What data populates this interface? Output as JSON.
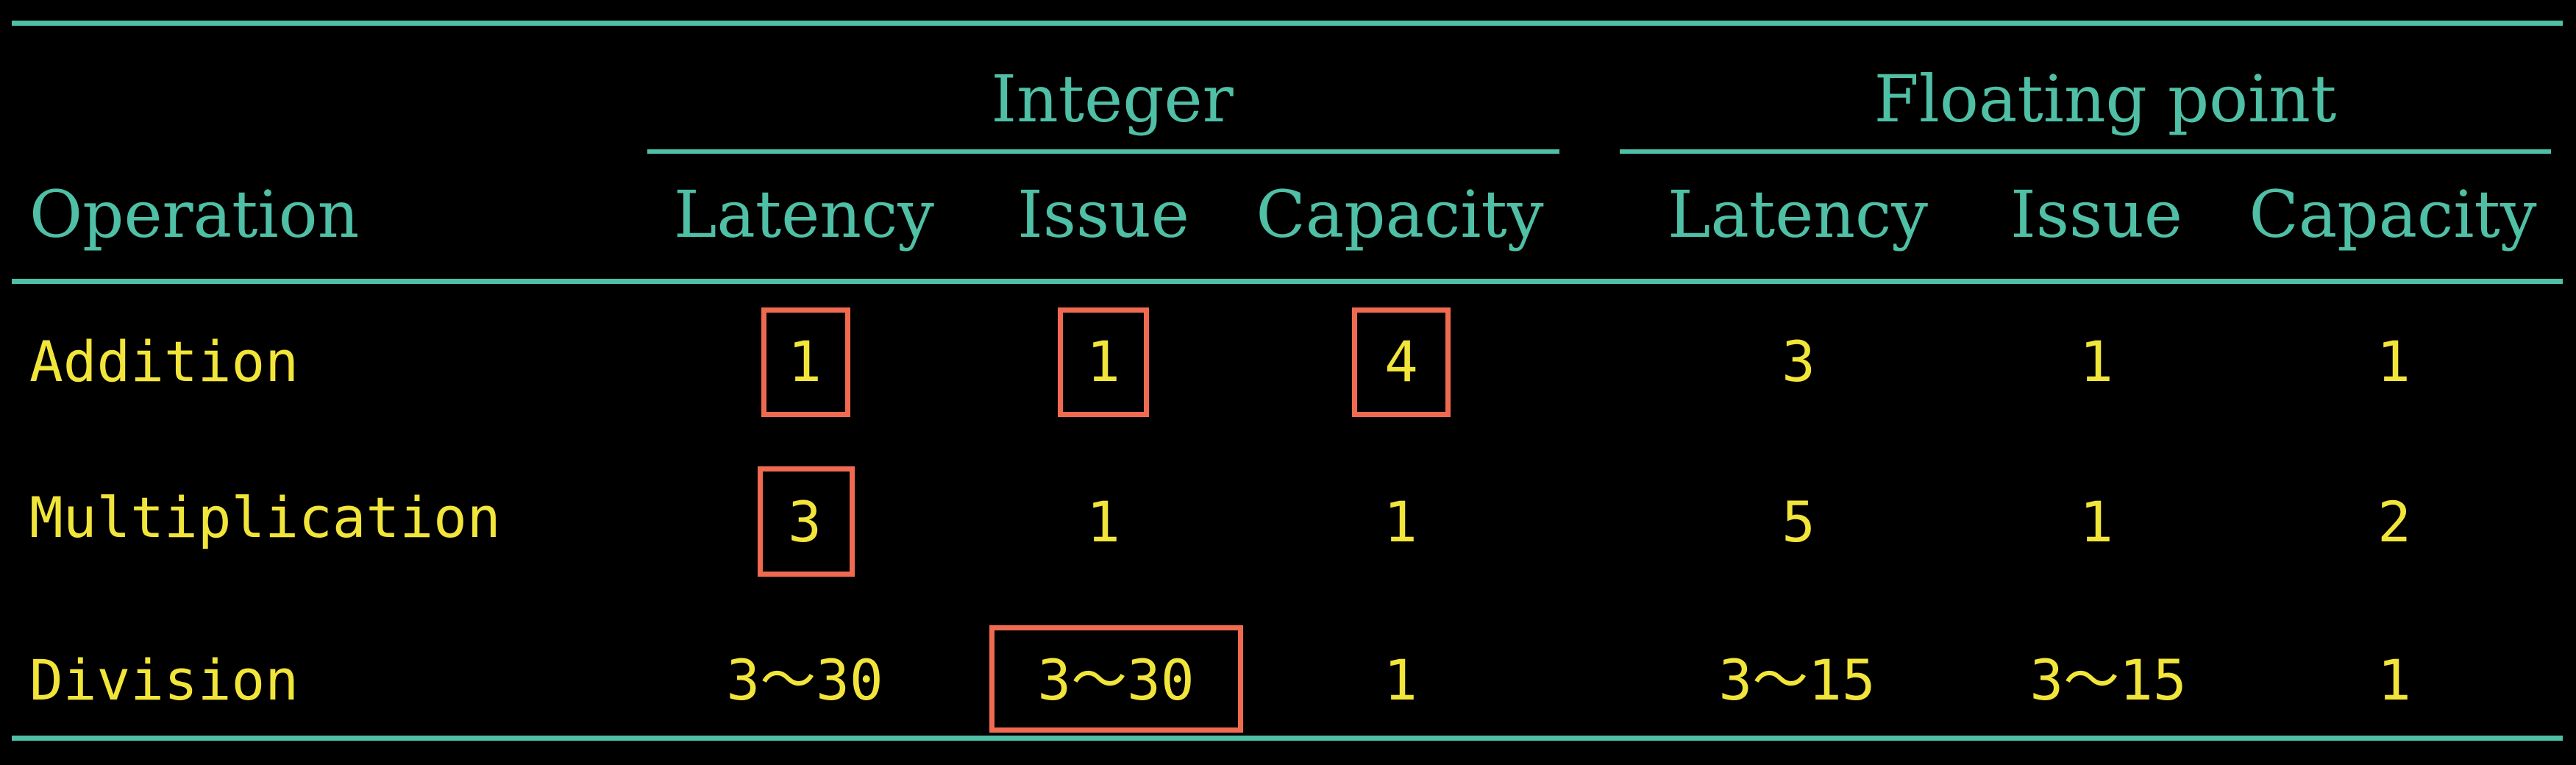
{
  "colors": {
    "background": "#000000",
    "header": "#4FBFA5",
    "cell_text": "#F2E53A",
    "highlight": "#F06A50"
  },
  "groups": {
    "integer": "Integer",
    "floating_point": "Floating point"
  },
  "columns": {
    "operation": "Operation",
    "int_latency": "Latency",
    "int_issue": "Issue",
    "int_capacity": "Capacity",
    "fp_latency": "Latency",
    "fp_issue": "Issue",
    "fp_capacity": "Capacity"
  },
  "rows": [
    {
      "operation": "Addition",
      "int_latency": "1",
      "int_issue": "1",
      "int_capacity": "4",
      "fp_latency": "3",
      "fp_issue": "1",
      "fp_capacity": "1",
      "highlighted": [
        "int_latency",
        "int_issue",
        "int_capacity"
      ]
    },
    {
      "operation": "Multiplication",
      "int_latency": "3",
      "int_issue": "1",
      "int_capacity": "1",
      "fp_latency": "5",
      "fp_issue": "1",
      "fp_capacity": "2",
      "highlighted": [
        "int_latency"
      ]
    },
    {
      "operation": "Division",
      "int_latency": "3～30",
      "int_issue": "3～30",
      "int_capacity": "1",
      "fp_latency": "3～15",
      "fp_issue": "3～15",
      "fp_capacity": "1",
      "highlighted": [
        "int_issue"
      ]
    }
  ]
}
